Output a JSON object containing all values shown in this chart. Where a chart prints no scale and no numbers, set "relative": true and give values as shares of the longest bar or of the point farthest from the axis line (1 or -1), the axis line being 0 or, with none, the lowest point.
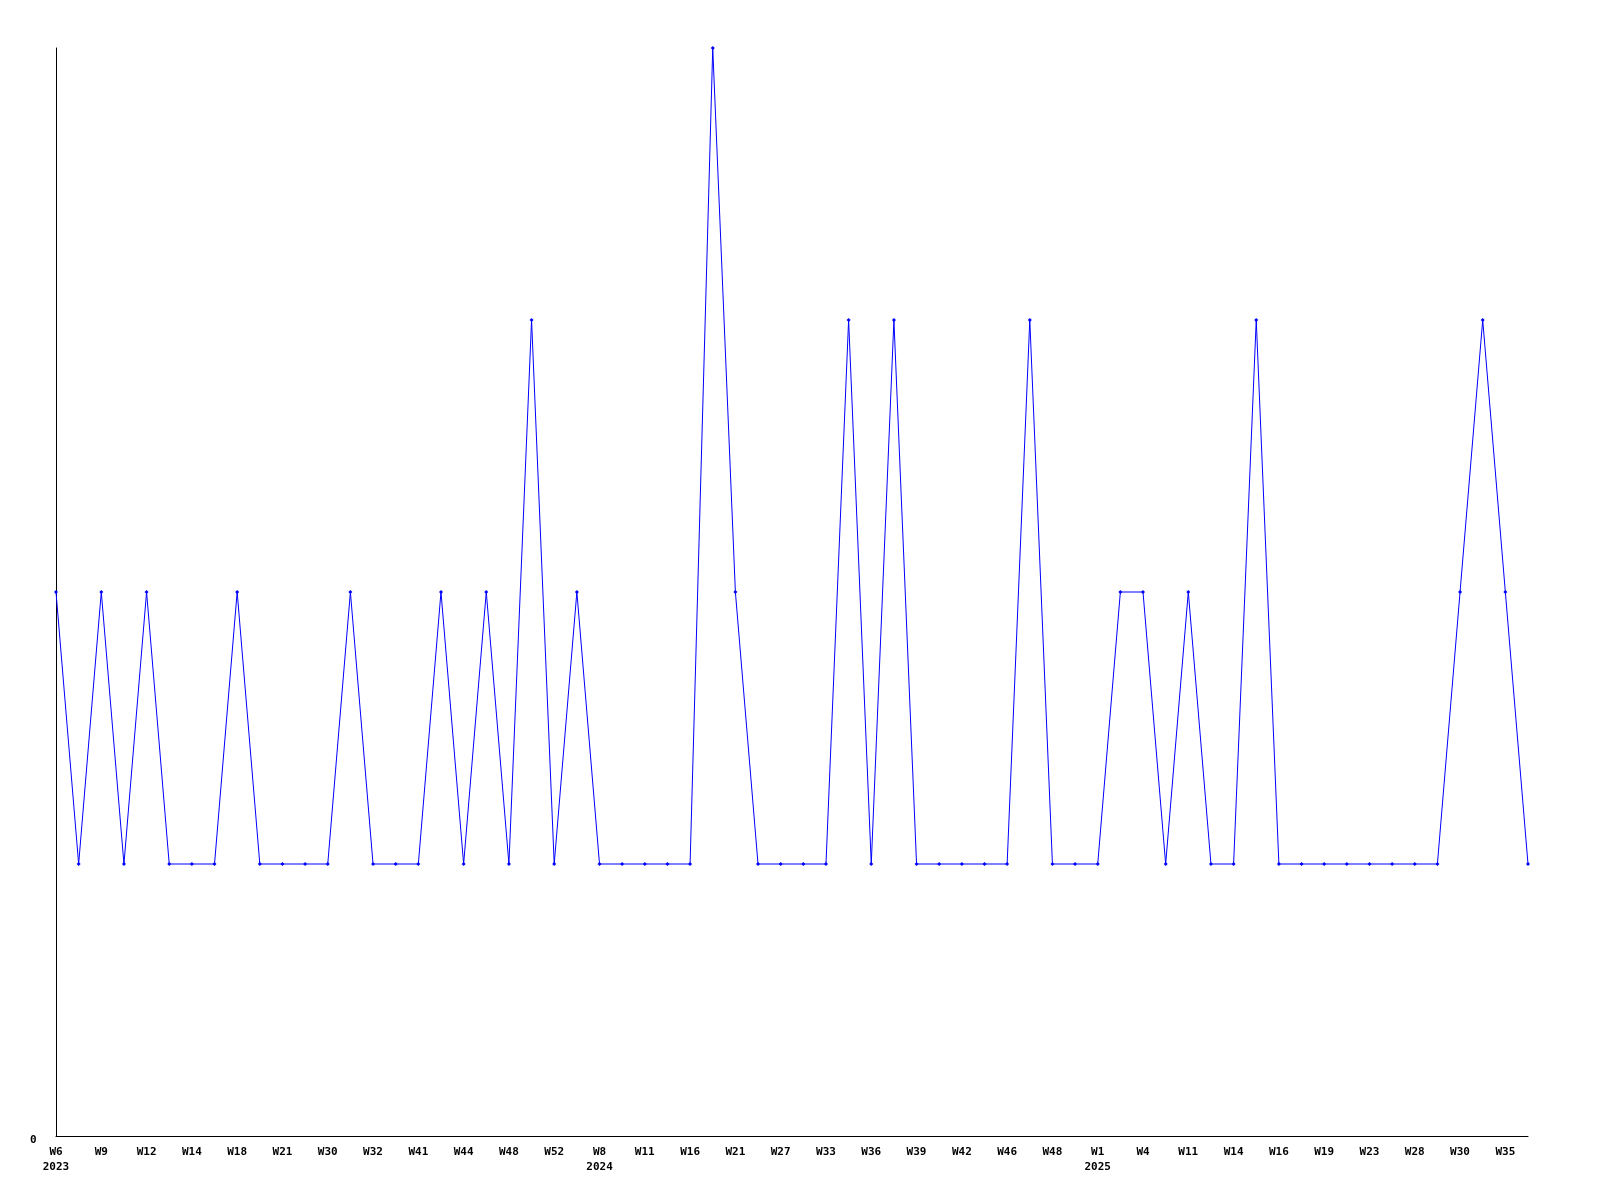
{
  "chart_data": {
    "type": "line",
    "relative": true,
    "annotations": [
      "0"
    ],
    "grid": false,
    "marker": "diamond",
    "line_style": "solid",
    "categories": [
      "W6\n2023",
      null,
      "W9",
      null,
      "W12",
      null,
      "W14",
      null,
      "W18",
      null,
      "W21",
      null,
      "W30",
      null,
      "W32",
      null,
      "W41",
      null,
      "W44",
      null,
      "W48",
      null,
      "W52",
      null,
      "W8\n2024",
      null,
      "W11",
      null,
      "W16",
      null,
      "W21",
      null,
      "W27",
      null,
      "W33",
      null,
      "W36",
      null,
      "W39",
      null,
      "W42",
      null,
      "W46",
      null,
      "W48",
      null,
      "W1\n2025",
      null,
      "W4",
      null,
      "W11",
      null,
      "W14",
      null,
      "W16",
      null,
      "W19",
      null,
      "W23",
      null,
      "W28",
      null,
      "W30",
      null,
      "W35",
      null
    ],
    "series": [
      {
        "color": "#0000ff",
        "values": [
          0.5,
          0.25,
          0.5,
          0.25,
          0.5,
          0.25,
          0.25,
          0.25,
          0.5,
          0.25,
          0.25,
          0.25,
          0.25,
          0.5,
          0.25,
          0.25,
          0.25,
          0.5,
          0.25,
          0.5,
          0.25,
          0.75,
          0.25,
          0.5,
          0.25,
          0.25,
          0.25,
          0.25,
          0.25,
          1,
          0.5,
          0.25,
          0.25,
          0.25,
          0.25,
          0.75,
          0.25,
          0.75,
          0.25,
          0.25,
          0.25,
          0.25,
          0.25,
          0.75,
          0.25,
          0.25,
          0.25,
          0.5,
          0.5,
          0.25,
          0.5,
          0.25,
          0.25,
          0.75,
          0.25,
          0.25,
          0.25,
          0.25,
          0.25,
          0.25,
          0.25,
          0.25,
          0.5,
          0.75,
          0.5,
          0.25
        ]
      }
    ]
  }
}
